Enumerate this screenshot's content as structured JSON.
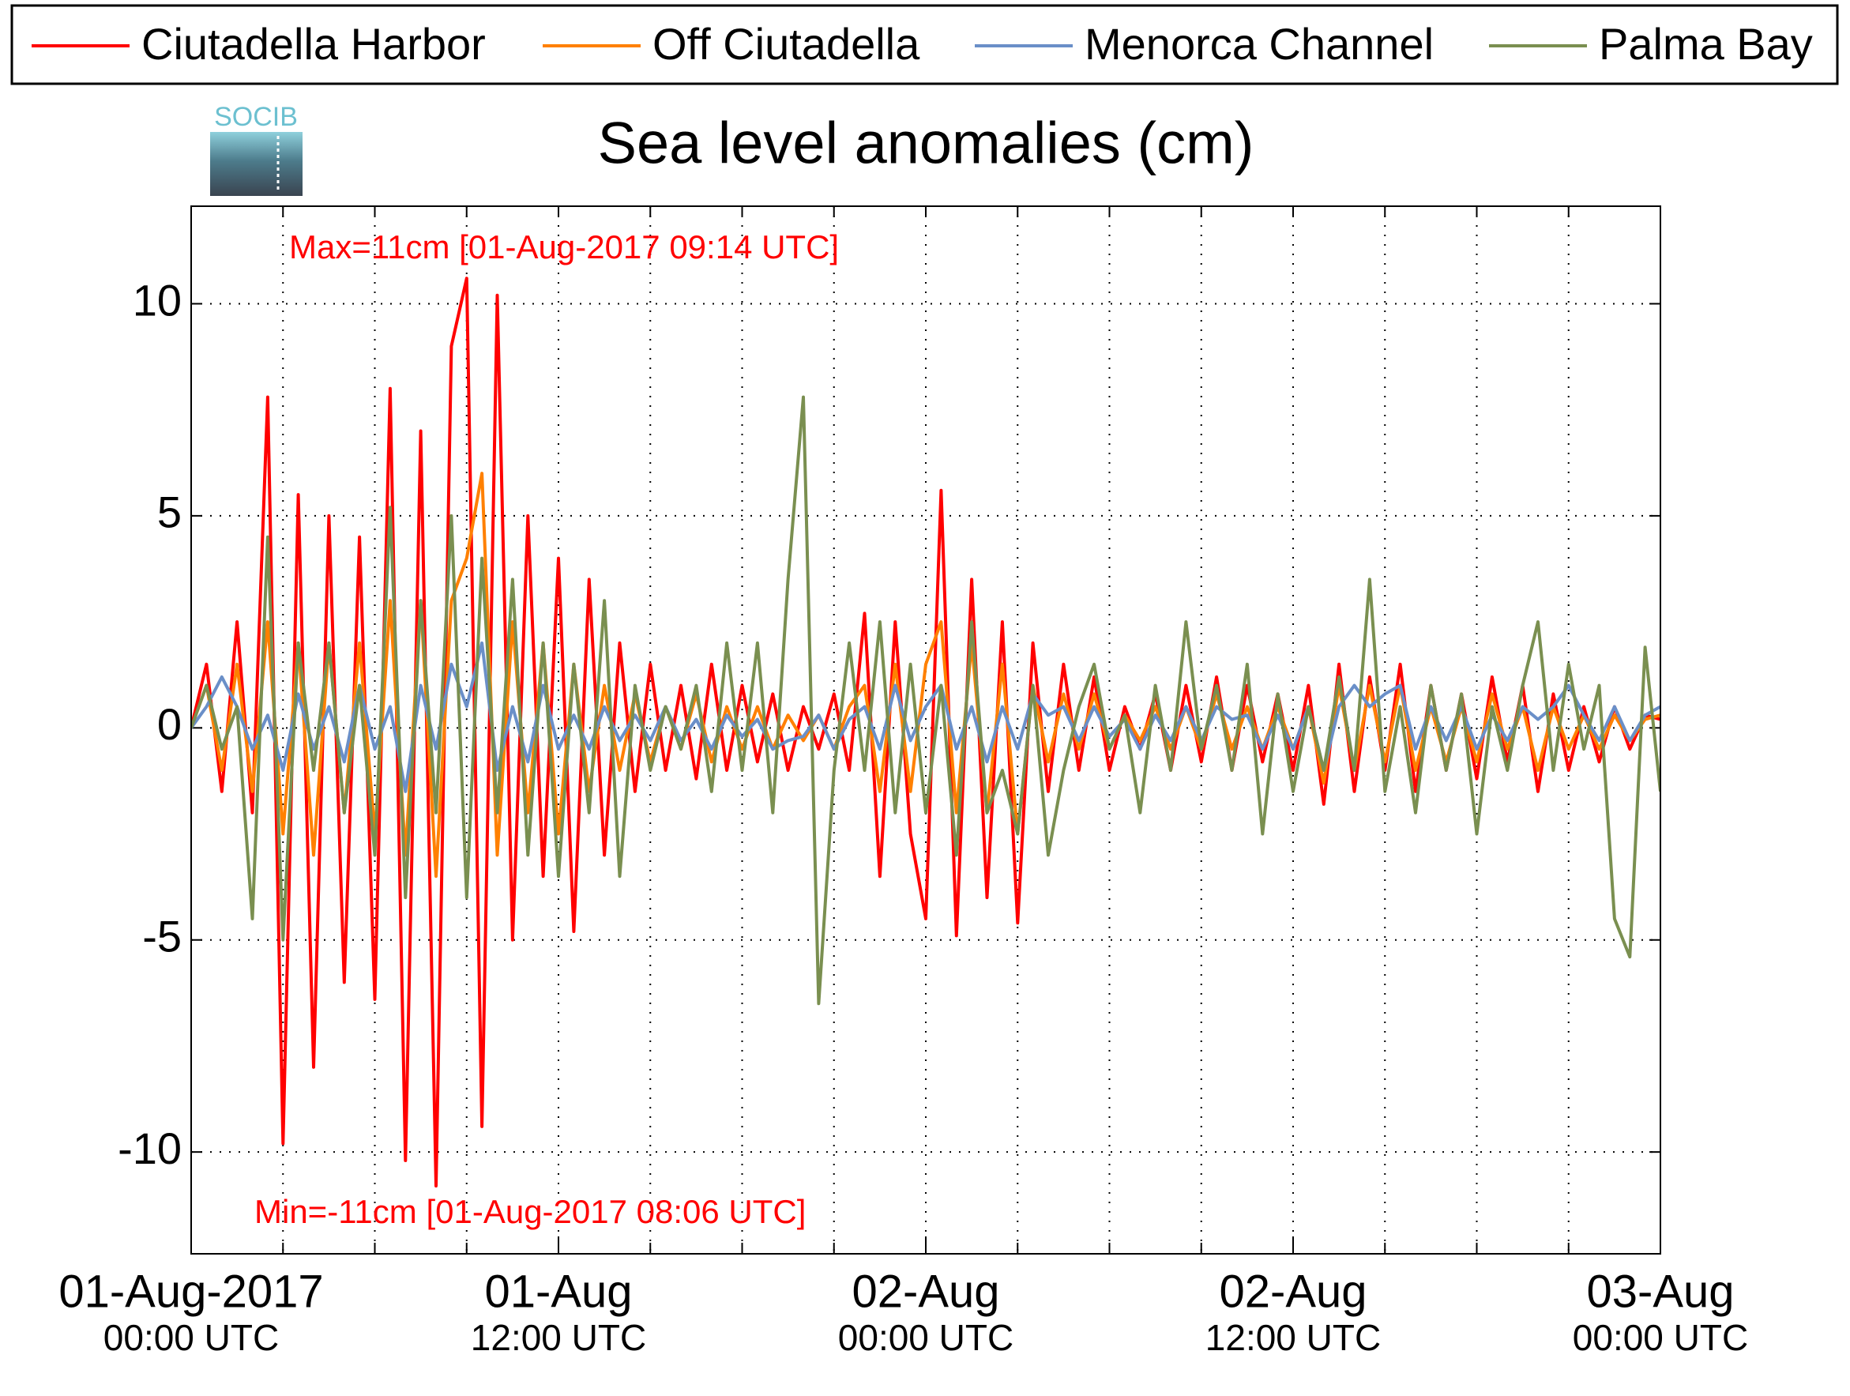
{
  "chart_data": {
    "type": "line",
    "title": "Sea level anomalies (cm)",
    "logo_text": "SOCIB",
    "annotations": [
      "Max=11cm [01-Aug-2017 09:14 UTC]",
      "Min=-11cm [01-Aug-2017 08:06 UTC]"
    ],
    "x": [
      0,
      0.5,
      1,
      1.5,
      2,
      2.5,
      3,
      3.5,
      4,
      4.5,
      5,
      5.5,
      6,
      6.5,
      7,
      7.5,
      8,
      8.5,
      9,
      9.5,
      10,
      10.5,
      11,
      11.5,
      12,
      12.5,
      13,
      13.5,
      14,
      14.5,
      15,
      15.5,
      16,
      16.5,
      17,
      17.5,
      18,
      18.5,
      19,
      19.5,
      20,
      20.5,
      21,
      21.5,
      22,
      22.5,
      23,
      23.5,
      24,
      24.5,
      25,
      25.5,
      26,
      26.5,
      27,
      27.5,
      28,
      28.5,
      29,
      29.5,
      30,
      30.5,
      31,
      31.5,
      32,
      32.5,
      33,
      33.5,
      34,
      34.5,
      35,
      35.5,
      36,
      36.5,
      37,
      37.5,
      38,
      38.5,
      39,
      39.5,
      40,
      40.5,
      41,
      41.5,
      42,
      42.5,
      43,
      43.5,
      44,
      44.5,
      45,
      45.5,
      46,
      46.5,
      47,
      47.5,
      48
    ],
    "xlim": [
      0,
      48
    ],
    "xticks": [
      {
        "value": 0,
        "label": [
          "01-Aug-2017",
          "00:00 UTC"
        ]
      },
      {
        "value": 12,
        "label": [
          "01-Aug",
          "12:00 UTC"
        ]
      },
      {
        "value": 24,
        "label": [
          "02-Aug",
          "00:00 UTC"
        ]
      },
      {
        "value": 36,
        "label": [
          "02-Aug",
          "12:00 UTC"
        ]
      },
      {
        "value": 48,
        "label": [
          "03-Aug",
          "00:00 UTC"
        ]
      }
    ],
    "xgrid": [
      0,
      3,
      6,
      9,
      12,
      15,
      18,
      21,
      24,
      27,
      30,
      33,
      36,
      39,
      42,
      45,
      48
    ],
    "ylim": [
      -12.4,
      12.3
    ],
    "yticks": [
      -10,
      -5,
      0,
      5,
      10
    ],
    "grid": true,
    "legend": "top",
    "series": [
      {
        "name": "Ciutadella Harbor",
        "color": "#ff0000",
        "values": [
          0,
          1.5,
          -1.5,
          2.5,
          -2,
          7.8,
          -9.8,
          5.5,
          -8,
          5,
          -6,
          4.5,
          -6.4,
          8,
          -10.2,
          7,
          -10.8,
          9,
          10.6,
          -9.4,
          10.2,
          -5,
          5,
          -3.5,
          4,
          -4.8,
          3.5,
          -3,
          2,
          -1.5,
          1.5,
          -1,
          1,
          -1.2,
          1.5,
          -1,
          1,
          -0.8,
          0.8,
          -1,
          0.5,
          -0.5,
          0.8,
          -1,
          2.7,
          -3.5,
          2.5,
          -2.5,
          -4.5,
          5.6,
          -4.9,
          3.5,
          -4,
          2.5,
          -4.6,
          2,
          -1.5,
          1.5,
          -1,
          1.2,
          -1,
          0.5,
          -0.5,
          0.8,
          -1,
          1,
          -0.8,
          1.2,
          -1,
          1,
          -0.8,
          0.8,
          -1,
          1,
          -1.8,
          1.5,
          -1.5,
          1.2,
          -1,
          1.5,
          -1.5,
          1,
          -1,
          0.8,
          -1.2,
          1.2,
          -0.8,
          1,
          -1.5,
          0.8,
          -1,
          0.5,
          -0.8,
          0.5,
          -0.5,
          0.3,
          0.2
        ]
      },
      {
        "name": "Off Ciutadella",
        "color": "#ff8000",
        "values": [
          0,
          1,
          -1,
          1.5,
          -1.5,
          2.5,
          -2.5,
          2,
          -3,
          2,
          -2,
          2,
          -2.5,
          3,
          -3,
          3,
          -3.5,
          3,
          4,
          6,
          -3,
          2.5,
          -2,
          2,
          -2.5,
          1.5,
          -1.5,
          1,
          -1,
          0.8,
          -0.8,
          0.5,
          -0.5,
          0.8,
          -0.8,
          0.5,
          -0.5,
          0.5,
          -0.5,
          0.3,
          -0.3,
          0.3,
          -0.5,
          0.5,
          1,
          -1.5,
          1.5,
          -1.5,
          1.5,
          2.5,
          -2,
          2,
          -2,
          1.5,
          -2.5,
          1,
          -0.8,
          0.8,
          -0.5,
          0.8,
          -0.5,
          0.3,
          -0.3,
          0.5,
          -0.5,
          0.5,
          -0.5,
          0.8,
          -0.5,
          0.5,
          -0.5,
          0.5,
          -0.5,
          0.5,
          -1.3,
          1,
          -1,
          1,
          -0.8,
          1,
          -1,
          0.5,
          -0.8,
          0.5,
          -0.8,
          0.8,
          -0.5,
          0.5,
          -1,
          0.5,
          -0.5,
          0.3,
          -0.5,
          0.3,
          -0.3,
          0.2,
          0.3
        ]
      },
      {
        "name": "Menorca Channel",
        "color": "#6a8fc8",
        "values": [
          0,
          0.5,
          1.2,
          0.5,
          -0.5,
          0.3,
          -1,
          0.8,
          -0.5,
          0.5,
          -0.8,
          1,
          -0.5,
          0.5,
          -1.5,
          1,
          -0.5,
          1.5,
          0.5,
          2,
          -1,
          0.5,
          -0.8,
          1,
          -0.5,
          0.3,
          -0.5,
          0.5,
          -0.3,
          0.3,
          -0.3,
          0.5,
          -0.3,
          0.2,
          -0.5,
          0.3,
          -0.2,
          0.2,
          -0.5,
          -0.3,
          -0.2,
          0.3,
          -0.5,
          0.2,
          0.5,
          -0.5,
          1,
          -0.3,
          0.5,
          1,
          -0.5,
          0.5,
          -0.8,
          0.5,
          -0.5,
          0.8,
          0.3,
          0.5,
          -0.3,
          0.5,
          -0.2,
          0.2,
          -0.5,
          0.3,
          -0.3,
          0.5,
          -0.3,
          0.5,
          0.2,
          0.3,
          -0.5,
          0.3,
          -0.5,
          0.5,
          -1,
          0.5,
          1,
          0.5,
          0.8,
          1,
          -0.5,
          0.5,
          -0.3,
          0.5,
          -0.5,
          0.3,
          -0.3,
          0.5,
          0.2,
          0.5,
          1,
          0.3,
          -0.3,
          0.5,
          -0.3,
          0.3,
          0.5
        ]
      },
      {
        "name": "Palma Bay",
        "color": "#7a8f50",
        "values": [
          0,
          1,
          -0.5,
          0.5,
          -4.5,
          4.5,
          -5,
          2,
          -1,
          2,
          -2,
          1,
          -3,
          5.2,
          -4,
          3,
          -2,
          5,
          -4,
          4,
          -2,
          3.5,
          -3,
          2,
          -3.5,
          1.5,
          -2,
          3,
          -3.5,
          1,
          -1,
          0.5,
          -0.5,
          1,
          -1.5,
          2,
          -1,
          2,
          -2,
          3.5,
          7.8,
          -6.5,
          -1,
          2,
          -1,
          2.5,
          -2,
          1.5,
          -2,
          1,
          -3,
          2.5,
          -2,
          -1,
          -2.5,
          1,
          -3,
          -1,
          0.5,
          1.5,
          -0.5,
          0.3,
          -2,
          1,
          -1,
          2.5,
          -0.5,
          1,
          -1,
          1.5,
          -2.5,
          0.8,
          -1.5,
          0.5,
          -1,
          1.2,
          -1,
          3.5,
          -1.5,
          0.5,
          -2,
          1,
          -1,
          0.8,
          -2.5,
          0.5,
          -1,
          1,
          2.5,
          -1,
          1.5,
          -0.5,
          1,
          -4.5,
          -5.4,
          1.9,
          -1.5
        ]
      }
    ]
  }
}
